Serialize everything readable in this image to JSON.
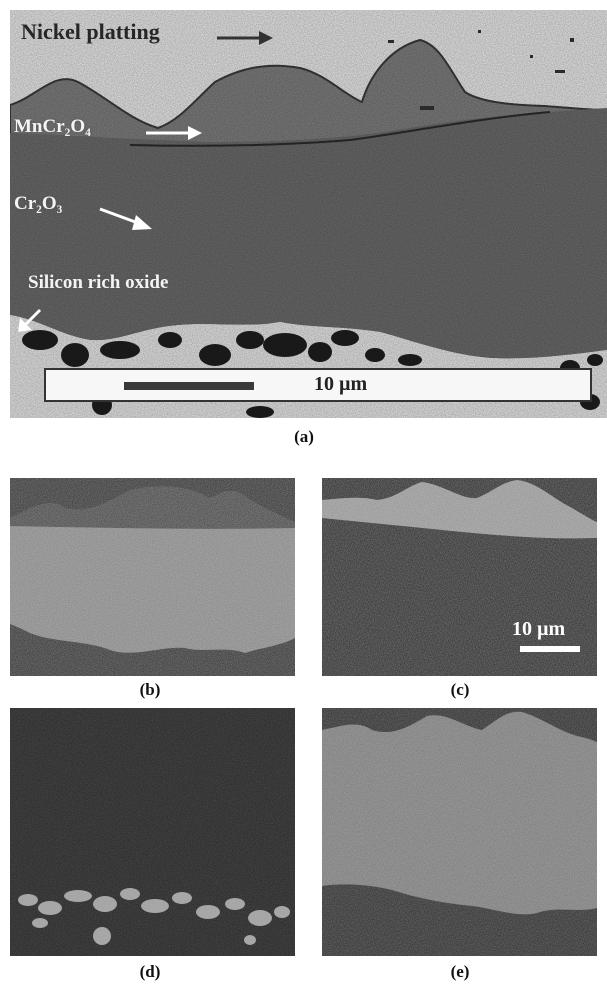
{
  "main_figure": {
    "caption": "(a)",
    "labels": {
      "nickel": "Nickel platting",
      "spinel": "MnCr₂O₄",
      "chromia": "Cr₂O₃",
      "silicon": "Silicon rich oxide"
    },
    "scale_label": "10 µm"
  },
  "maps": [
    {
      "caption": "(b)"
    },
    {
      "caption": "(c)",
      "scale_label": "10 µm"
    },
    {
      "caption": "(d)"
    },
    {
      "caption": "(e)"
    }
  ]
}
